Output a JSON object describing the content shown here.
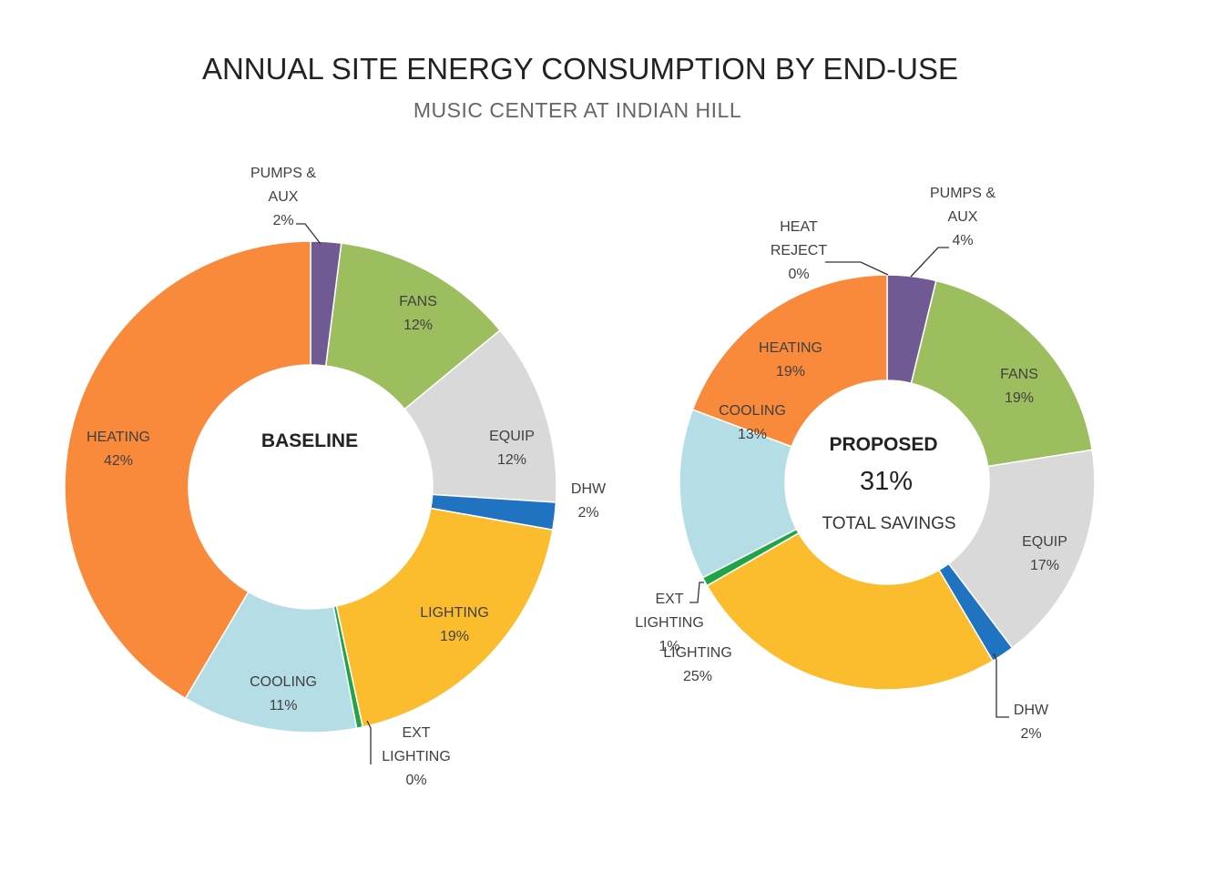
{
  "chart_data": {
    "type": "pie",
    "title": "ANNUAL SITE ENERGY CONSUMPTION BY END-USE",
    "subtitle": "MUSIC CENTER AT INDIAN HILL",
    "charts": [
      {
        "name": "baseline",
        "center_label": "BASELINE",
        "slices": [
          {
            "key": "pumps",
            "label": "PUMPS & AUX",
            "label_lines": [
              "PUMPS &",
              "AUX"
            ],
            "pct_label": "2%",
            "value": 2,
            "color": "#6f5a93"
          },
          {
            "key": "fans",
            "label": "FANS",
            "label_lines": [
              "FANS"
            ],
            "pct_label": "12%",
            "value": 12,
            "color": "#9dbe5f"
          },
          {
            "key": "equip",
            "label": "EQUIP",
            "label_lines": [
              "EQUIP"
            ],
            "pct_label": "12%",
            "value": 12,
            "color": "#d9d9d9"
          },
          {
            "key": "dhw",
            "label": "DHW",
            "label_lines": [
              "DHW"
            ],
            "pct_label": "2%",
            "value": 1.8,
            "color": "#1f73c1"
          },
          {
            "key": "lighting",
            "label": "LIGHTING",
            "label_lines": [
              "LIGHTING"
            ],
            "pct_label": "19%",
            "value": 18.8,
            "color": "#fbbd2e"
          },
          {
            "key": "extlighting",
            "label": "EXT LIGHTING",
            "label_lines": [
              "EXT",
              "LIGHTING"
            ],
            "pct_label": "0%",
            "value": 0.4,
            "color": "#21a448"
          },
          {
            "key": "cooling",
            "label": "COOLING",
            "label_lines": [
              "COOLING"
            ],
            "pct_label": "11%",
            "value": 11.5,
            "color": "#b5dde6"
          },
          {
            "key": "heating",
            "label": "HEATING",
            "label_lines": [
              "HEATING"
            ],
            "pct_label": "42%",
            "value": 41.5,
            "color": "#f98a3b"
          }
        ]
      },
      {
        "name": "proposed",
        "center_label": "PROPOSED",
        "center_value": "31%",
        "center_caption": "TOTAL SAVINGS",
        "slices": [
          {
            "key": "pumps",
            "label": "PUMPS & AUX",
            "label_lines": [
              "PUMPS &",
              "AUX"
            ],
            "pct_label": "4%",
            "value": 3.8,
            "color": "#6f5a93"
          },
          {
            "key": "fans",
            "label": "FANS",
            "label_lines": [
              "FANS"
            ],
            "pct_label": "19%",
            "value": 18.7,
            "color": "#9dbe5f"
          },
          {
            "key": "equip",
            "label": "EQUIP",
            "label_lines": [
              "EQUIP"
            ],
            "pct_label": "17%",
            "value": 17.2,
            "color": "#d9d9d9"
          },
          {
            "key": "dhw",
            "label": "DHW",
            "label_lines": [
              "DHW"
            ],
            "pct_label": "2%",
            "value": 1.8,
            "color": "#1f73c1"
          },
          {
            "key": "lighting",
            "label": "LIGHTING",
            "label_lines": [
              "LIGHTING"
            ],
            "pct_label": "25%",
            "value": 25.2,
            "color": "#fbbd2e"
          },
          {
            "key": "extlighting",
            "label": "EXT LIGHTING",
            "label_lines": [
              "EXT",
              "LIGHTING"
            ],
            "pct_label": "1%",
            "value": 0.7,
            "color": "#21a448"
          },
          {
            "key": "cooling",
            "label": "COOLING",
            "label_lines": [
              "COOLING"
            ],
            "pct_label": "13%",
            "value": 13.3,
            "color": "#b5dde6"
          },
          {
            "key": "heating",
            "label": "HEATING",
            "label_lines": [
              "HEATING"
            ],
            "pct_label": "19%",
            "value": 19.3,
            "color": "#f98a3b"
          },
          {
            "key": "heatreject",
            "label": "HEAT REJECT",
            "label_lines": [
              "HEAT",
              "REJECT"
            ],
            "pct_label": "0%",
            "value": 0,
            "color": "#a5a5a5"
          }
        ]
      }
    ]
  }
}
